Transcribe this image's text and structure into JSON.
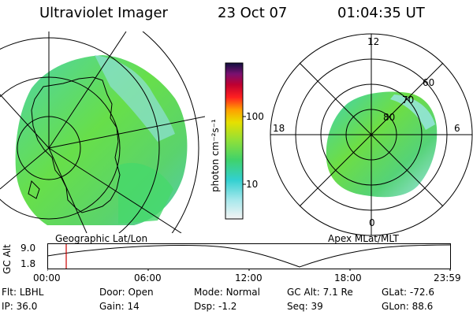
{
  "header": {
    "instrument": "Ultraviolet Imager",
    "date": "23 Oct 07",
    "time": "01:04:35 UT"
  },
  "left_panel": {
    "label": "Geographic Lat/Lon"
  },
  "colorbar": {
    "unit_label": "photon cm⁻²s⁻¹",
    "ticks": [
      "100",
      "10"
    ],
    "scale": "log"
  },
  "right_panel": {
    "label": "Apex MLat/MLT",
    "mlt_labels": {
      "top": "12",
      "left": "18",
      "right": "6",
      "bottom": "0"
    },
    "lat_labels": [
      "60",
      "70",
      "80"
    ]
  },
  "altitude_plot": {
    "ylabel": "GC Alt",
    "yticks": [
      "9.0",
      "1.8"
    ],
    "xticks": [
      "00:00",
      "06:00",
      "12:00",
      "18:00",
      "23:59"
    ],
    "marker_time": "01:04:35",
    "marker_color": "#cc0000"
  },
  "footer": {
    "row1": [
      {
        "key": "Flt:",
        "val": "LBHL"
      },
      {
        "key": "Door:",
        "val": "Open"
      },
      {
        "key": "Mode:",
        "val": "Normal"
      },
      {
        "key": "GC Alt:",
        "val": "7.1 Re"
      },
      {
        "key": "GLat:",
        "val": "-72.6"
      }
    ],
    "row2": [
      {
        "key": "IP:",
        "val": "36.0"
      },
      {
        "key": "Gain:",
        "val": "14"
      },
      {
        "key": "Dsp:",
        "val": "-1.2"
      },
      {
        "key": "Seq:",
        "val": "39"
      },
      {
        "key": "GLon:",
        "val": "88.6"
      }
    ]
  }
}
